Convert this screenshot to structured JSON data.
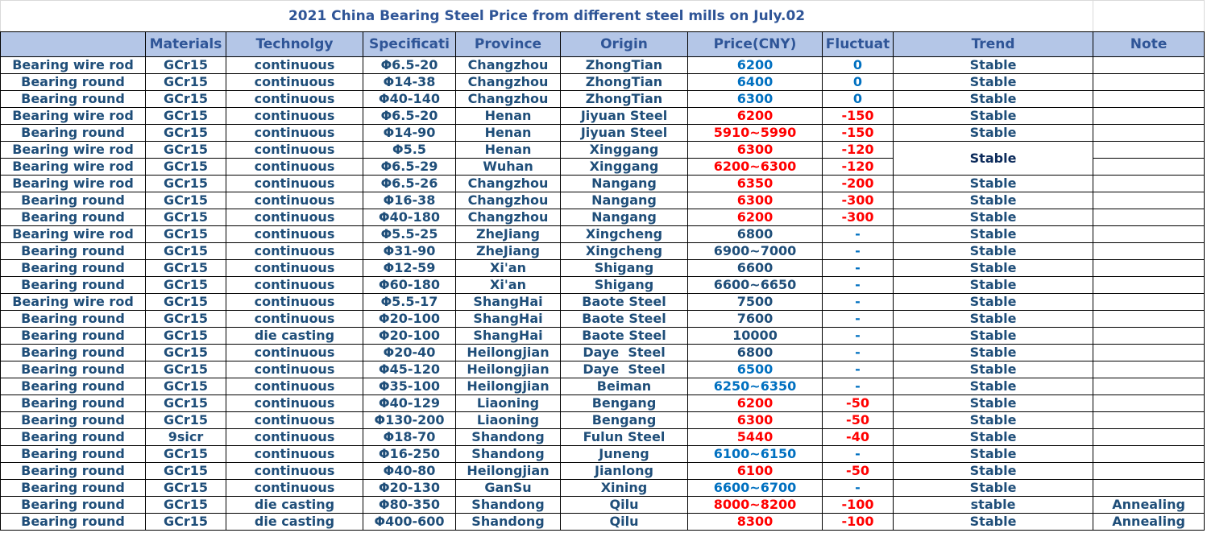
{
  "title": "2021 China Bearing Steel Price from different steel mills on July.02",
  "header": [
    null,
    "Materials",
    "Technolgy",
    "Specificati",
    "Province",
    "Origin",
    "Price(CNY)",
    "Fluctuat",
    "Trend",
    "Note"
  ],
  "colors": {
    "blue": "#0070c0",
    "red": "#ff0000",
    "dark": "#1f4e79"
  },
  "rows": [
    {
      "cells": [
        "Bearing wire rod",
        "GCr15",
        "continuous",
        "Φ6.5-20",
        "Changzhou",
        "ZhongTian",
        6200,
        0,
        "Stable",
        null
      ],
      "price_color": "blue",
      "fluct_color": "blue"
    },
    {
      "cells": [
        "Bearing round",
        "GCr15",
        "continuous",
        "Φ14-38",
        "Changzhou",
        "ZhongTian",
        6400,
        0,
        "Stable",
        null
      ],
      "price_color": "blue",
      "fluct_color": "blue"
    },
    {
      "cells": [
        "Bearing round",
        "GCr15",
        "continuous",
        "Φ40-140",
        "Changzhou",
        "ZhongTian",
        6300,
        0,
        "Stable",
        null
      ],
      "price_color": "blue",
      "fluct_color": "blue"
    },
    {
      "cells": [
        "Bearing wire rod",
        "GCr15",
        "continuous",
        "Φ6.5-20",
        "Henan",
        "Jiyuan Steel",
        6200,
        -150,
        "Stable",
        null
      ],
      "price_color": "red",
      "fluct_color": "red"
    },
    {
      "cells": [
        "Bearing round",
        "GCr15",
        "continuous",
        "Φ14-90",
        "Henan",
        "Jiyuan Steel",
        "5910~5990",
        -150,
        "Stable",
        null
      ],
      "price_color": "red",
      "fluct_color": "red"
    },
    {
      "cells": [
        "Bearing wire rod",
        "GCr15",
        "continuous",
        "Φ5.5",
        "Henan",
        "Xinggang",
        6300,
        -120,
        "Stable",
        null
      ],
      "price_color": "red",
      "fluct_color": "red"
    },
    {
      "cells": [
        "Bearing wire rod",
        "GCr15",
        "continuous",
        "Φ6.5-29",
        "Wuhan",
        "Xinggang",
        "6200~6300",
        -120,
        null,
        null
      ],
      "price_color": "red",
      "fluct_color": "red"
    },
    {
      "cells": [
        "Bearing wire rod",
        "GCr15",
        "continuous",
        "Φ6.5-26",
        "Changzhou",
        "Nangang",
        6350,
        -200,
        "Stable",
        null
      ],
      "price_color": "red",
      "fluct_color": "red"
    },
    {
      "cells": [
        "Bearing round",
        "GCr15",
        "continuous",
        "Φ16-38",
        "Changzhou",
        "Nangang",
        6300,
        -300,
        "Stable",
        null
      ],
      "price_color": "red",
      "fluct_color": "red"
    },
    {
      "cells": [
        "Bearing round",
        "GCr15",
        "continuous",
        "Φ40-180",
        "Changzhou",
        "Nangang",
        6200,
        -300,
        "Stable",
        null
      ],
      "price_color": "red",
      "fluct_color": "red"
    },
    {
      "cells": [
        "Bearing wire rod",
        "GCr15",
        "continuous",
        "Φ5.5-25",
        "ZheJiang",
        "Xingcheng",
        6800,
        "-",
        "Stable",
        null
      ],
      "price_color": "dark",
      "fluct_color": "blue"
    },
    {
      "cells": [
        "Bearing round",
        "GCr15",
        "continuous",
        "Φ31-90",
        "ZheJiang",
        "Xingcheng",
        "6900~7000",
        "-",
        "Stable",
        null
      ],
      "price_color": "dark",
      "fluct_color": "blue"
    },
    {
      "cells": [
        "Bearing round",
        "GCr15",
        "continuous",
        "Φ12-59",
        "Xi'an",
        "Shigang",
        6600,
        "-",
        "Stable",
        null
      ],
      "price_color": "dark",
      "fluct_color": "blue"
    },
    {
      "cells": [
        "Bearing round",
        "GCr15",
        "continuous",
        "Φ60-180",
        "Xi'an",
        "Shigang",
        "6600~6650",
        "-",
        "Stable",
        null
      ],
      "price_color": "dark",
      "fluct_color": "blue"
    },
    {
      "cells": [
        "Bearing wire rod",
        "GCr15",
        "continuous",
        "Φ5.5-17",
        "ShangHai",
        "Baote Steel",
        7500,
        "-",
        "Stable",
        null
      ],
      "price_color": "dark",
      "fluct_color": "blue"
    },
    {
      "cells": [
        "Bearing round",
        "GCr15",
        "continuous",
        "Φ20-100",
        "ShangHai",
        "Baote Steel",
        7600,
        "-",
        "Stable",
        null
      ],
      "price_color": "dark",
      "fluct_color": "blue"
    },
    {
      "cells": [
        "Bearing round",
        "GCr15",
        "die casting",
        "Φ20-100",
        "ShangHai",
        "Baote Steel",
        10000,
        "-",
        "Stable",
        null
      ],
      "price_color": "dark",
      "fluct_color": "blue"
    },
    {
      "cells": [
        "Bearing round",
        "GCr15",
        "continuous",
        "Φ20-40",
        "Heilongjian",
        "Daye  Steel",
        6800,
        "-",
        "Stable",
        null
      ],
      "price_color": "dark",
      "fluct_color": "blue"
    },
    {
      "cells": [
        "Bearing round",
        "GCr15",
        "continuous",
        "Φ45-120",
        "Heilongjian",
        "Daye  Steel",
        6500,
        "-",
        "Stable",
        null
      ],
      "price_color": "blue",
      "fluct_color": "blue"
    },
    {
      "cells": [
        "Bearing round",
        "GCr15",
        "continuous",
        "Φ35-100",
        "Heilongjian",
        "Beiman",
        "6250~6350",
        "-",
        "Stable",
        null
      ],
      "price_color": "blue",
      "fluct_color": "blue"
    },
    {
      "cells": [
        "Bearing round",
        "GCr15",
        "continuous",
        "Φ40-129",
        "Liaoning",
        "Bengang",
        6200,
        -50,
        "Stable",
        null
      ],
      "price_color": "red",
      "fluct_color": "red"
    },
    {
      "cells": [
        "Bearing round",
        "GCr15",
        "continuous",
        "Φ130-200",
        "Liaoning",
        "Bengang",
        6300,
        -50,
        "Stable",
        null
      ],
      "price_color": "red",
      "fluct_color": "red"
    },
    {
      "cells": [
        "Bearing round",
        "9sicr",
        "continuous",
        "Φ18-70",
        "Shandong",
        "Fulun Steel",
        5440,
        -40,
        "Stable",
        null
      ],
      "price_color": "red",
      "fluct_color": "red"
    },
    {
      "cells": [
        "Bearing round",
        "GCr15",
        "continuous",
        "Φ16-250",
        "Shandong",
        "Juneng",
        "6100~6150",
        "-",
        "Stable",
        null
      ],
      "price_color": "blue",
      "fluct_color": "blue"
    },
    {
      "cells": [
        "Bearing round",
        "GCr15",
        "continuous",
        "Φ40-80",
        "Heilongjian",
        "Jianlong",
        6100,
        -50,
        "Stable",
        null
      ],
      "price_color": "red",
      "fluct_color": "red"
    },
    {
      "cells": [
        "Bearing round",
        "GCr15",
        "continuous",
        "Φ20-130",
        "GanSu",
        "Xining",
        "6600~6700",
        "-",
        "Stable",
        null
      ],
      "price_color": "blue",
      "fluct_color": "blue"
    },
    {
      "cells": [
        "Bearing round",
        "GCr15",
        "die casting",
        "Φ80-350",
        "Shandong",
        "Qilu",
        "8000~8200",
        -100,
        "stable",
        "Annealing"
      ],
      "price_color": "red",
      "fluct_color": "red"
    },
    {
      "cells": [
        "Bearing round",
        "GCr15",
        "die casting",
        "Φ400-600",
        "Shandong",
        "Qilu",
        8300,
        -100,
        "Stable",
        "Annealing"
      ],
      "price_color": "red",
      "fluct_color": "red"
    }
  ]
}
